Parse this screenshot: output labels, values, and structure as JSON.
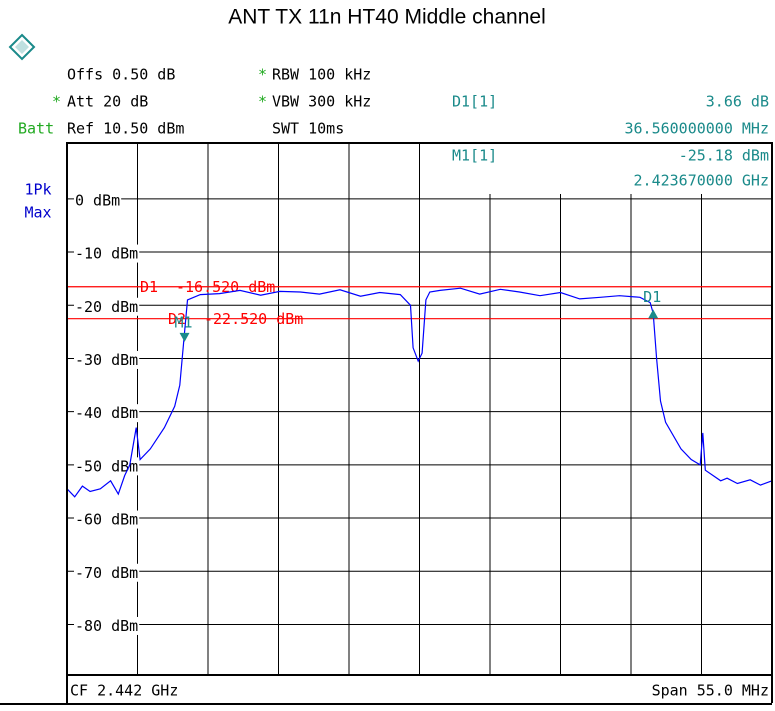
{
  "chart_data": {
    "type": "line",
    "title": "ANT TX 11n HT40 Middle channel",
    "settings": {
      "offs": "Offs 0.50 dB",
      "rbw_flag": "*",
      "rbw": "RBW 100 kHz",
      "att_flag": "*",
      "att": "Att 20 dB",
      "vbw_flag": "*",
      "vbw": "VBW 300 kHz",
      "batt": "Batt",
      "ref": "Ref 10.50 dBm",
      "swt": "SWT 10ms",
      "detector": "1Pk",
      "trace_mode": "Max",
      "center": "CF 2.442 GHz",
      "span": "Span 55.0 MHz"
    },
    "marker_info": [
      {
        "name": "D1[1]",
        "level": "3.66 dB",
        "freq": "36.560000000 MHz"
      },
      {
        "name": "M1[1]",
        "level": "-25.18 dBm",
        "freq": "2.423670000 GHz"
      }
    ],
    "xlim": [
      2414.5,
      2469.5
    ],
    "xticks": [
      2414.5,
      2420,
      2425.5,
      2431,
      2436.5,
      2442,
      2447.5,
      2453,
      2458.5,
      2464,
      2469.5
    ],
    "ylim": [
      -89.5,
      10.5
    ],
    "yticks": [
      {
        "value": 0,
        "label": "0 dBm"
      },
      {
        "value": -10,
        "label": "-10 dBm"
      },
      {
        "value": -20,
        "label": "-20 dBm"
      },
      {
        "value": -30,
        "label": "-30 dBm"
      },
      {
        "value": -40,
        "label": "-40 dBm"
      },
      {
        "value": -50,
        "label": "-50 dBm"
      },
      {
        "value": -60,
        "label": "-60 dBm"
      },
      {
        "value": -70,
        "label": "-70 dBm"
      },
      {
        "value": -80,
        "label": "-80 dBm"
      }
    ],
    "grid": true,
    "series": [
      {
        "color": "#0000ff",
        "x": [
          2414.5,
          2415.1,
          2415.7,
          2416.3,
          2417.1,
          2417.9,
          2418.5,
          2419.0,
          2419.4,
          2419.9,
          2420.2,
          2421.0,
          2422.1,
          2422.9,
          2423.3,
          2423.67,
          2423.9,
          2424.9,
          2426.4,
          2428.0,
          2429.6,
          2431.1,
          2432.7,
          2434.2,
          2435.8,
          2437.4,
          2438.9,
          2440.5,
          2441.3,
          2441.5,
          2441.9,
          2442.2,
          2442.5,
          2442.8,
          2443.6,
          2445.2,
          2446.7,
          2448.3,
          2449.8,
          2451.4,
          2453.0,
          2454.5,
          2456.1,
          2457.6,
          2459.2,
          2460.0,
          2460.23,
          2460.5,
          2460.8,
          2461.2,
          2462.4,
          2463.2,
          2463.9,
          2464.1,
          2464.3,
          2465.5,
          2466.0,
          2466.8,
          2467.8,
          2468.6,
          2469.5
        ],
        "values": [
          -54.5,
          -56,
          -54,
          -55,
          -54.5,
          -53,
          -55.5,
          -52,
          -50,
          -43,
          -49,
          -47,
          -43,
          -39,
          -35,
          -25.18,
          -19,
          -18,
          -17.8,
          -17.2,
          -18.1,
          -17.4,
          -17.5,
          -17.9,
          -17.1,
          -18.3,
          -17.6,
          -18,
          -20,
          -28,
          -30.5,
          -29,
          -19,
          -17.5,
          -17.2,
          -16.8,
          -17.9,
          -17,
          -17.5,
          -18.2,
          -17.6,
          -18.8,
          -18.5,
          -18.2,
          -18.5,
          -19.5,
          -21.52,
          -30,
          -38,
          -42,
          -47,
          -49,
          -50,
          -44,
          -51,
          -53,
          -52.5,
          -53.5,
          -52.8,
          -53.8,
          -53
        ]
      }
    ],
    "display_lines": [
      {
        "name": "D1",
        "value": -16.52,
        "value_label": "-16.520 dBm",
        "color": "#ff0000"
      },
      {
        "name": "D2",
        "value": -22.52,
        "value_label": "-22.520 dBm",
        "color": "#ff0000"
      }
    ],
    "markers": [
      {
        "name": "M1",
        "x": 2423.67,
        "y": -25.18,
        "color": "#1a8a8a"
      },
      {
        "name": "D1",
        "x": 2460.23,
        "y": -21.52,
        "color": "#1a8a8a"
      }
    ]
  }
}
